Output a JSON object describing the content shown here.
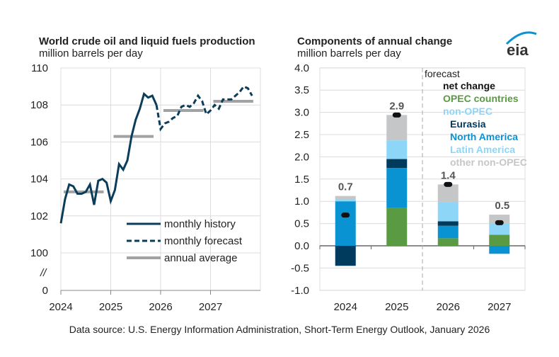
{
  "chart_data": [
    {
      "type": "line",
      "title": "World crude oil and liquid fuels production",
      "subtitle": "million barrels per day",
      "ylim": [
        100,
        110
      ],
      "yticks": [
        "110",
        "108",
        "106",
        "104",
        "102",
        "100",
        "0"
      ],
      "axis_break": "//",
      "xticks": [
        "2024",
        "2025",
        "2026",
        "2027"
      ],
      "grid": true,
      "legend": "bottom-right",
      "series": [
        {
          "name": "monthly history",
          "style": "solid",
          "start": "2024-01",
          "values": [
            101.6,
            102.9,
            103.7,
            103.6,
            103.2,
            103.2,
            103.3,
            103.7,
            102.6,
            103.9,
            104.0,
            103.8,
            102.8,
            103.4,
            104.8,
            104.5,
            105.0,
            106.3,
            107.2,
            107.8,
            108.6,
            108.4,
            108.5,
            108.0
          ]
        },
        {
          "name": "monthly forecast",
          "style": "dashed",
          "start": "2025-12",
          "values": [
            108.0,
            106.7,
            107.0,
            107.1,
            107.3,
            107.4,
            107.9,
            108.0,
            107.9,
            108.1,
            108.5,
            108.2,
            107.5,
            107.7,
            108.0,
            107.8,
            108.3,
            108.3,
            108.3,
            108.5,
            108.7,
            109.0,
            108.9,
            108.5
          ]
        },
        {
          "name": "annual average",
          "style": "bar",
          "years": [
            "2024",
            "2025",
            "2026",
            "2027"
          ],
          "values": [
            103.3,
            106.3,
            107.7,
            108.2
          ]
        }
      ]
    },
    {
      "type": "bar",
      "stacked": true,
      "title": "Components of annual change",
      "subtitle": "million barrels per day",
      "ylim": [
        -1.0,
        4.0
      ],
      "yticks": [
        "4.0",
        "3.5",
        "3.0",
        "2.5",
        "2.0",
        "1.5",
        "1.0",
        "0.5",
        "0.0",
        "-0.5",
        "-1.0"
      ],
      "categories": [
        "2024",
        "2025",
        "2026",
        "2027"
      ],
      "forecast_label": "forecast",
      "grid": true,
      "legend": "top-right",
      "series": [
        {
          "name": "OPEC countries",
          "color": "#5a9a42",
          "values": [
            0,
            0.85,
            0.17,
            0.25
          ]
        },
        {
          "name": "North America",
          "color": "#0a93d2",
          "values": [
            1.0,
            0.9,
            0.28,
            -0.18
          ]
        },
        {
          "name": "Eurasia",
          "color": "#003a5c",
          "values": [
            -0.45,
            0.2,
            0.1,
            0
          ]
        },
        {
          "name": "Latin America",
          "color": "#8dd6f7",
          "values": [
            0.05,
            0.42,
            0.43,
            0.25
          ]
        },
        {
          "name": "other non-OPEC",
          "color": "#c4c6c8",
          "values": [
            0.07,
            0.57,
            0.4,
            0.2
          ]
        }
      ],
      "net_change": {
        "name": "net change",
        "values": [
          0.69,
          2.94,
          1.38,
          0.52
        ],
        "labels": [
          "0.7",
          "2.9",
          "1.4",
          "0.5"
        ]
      },
      "legend_items": [
        "net change",
        "OPEC countries",
        "non-OPEC",
        "Eurasia",
        "North America",
        "Latin America",
        "other non-OPEC"
      ],
      "legend_colors": [
        "#111111",
        "#5a9a42",
        "#8dd6f7",
        "#003a5c",
        "#0a93d2",
        "#8dd6f7",
        "#c4c6c8"
      ]
    }
  ],
  "source": "Data source: U.S. Energy Information Administration, Short-Term Energy Outlook, January 2026",
  "logo": "eia",
  "colors": {
    "line": "#0b3d5b",
    "avg": "#a0a2a4",
    "grid": "#dcdcdc"
  }
}
